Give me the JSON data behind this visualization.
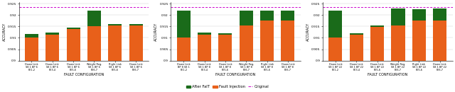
{
  "subplots": [
    {
      "original_line": 0.9235,
      "bars": [
        {
          "label": "Down Link\nS8 1 BP 6\nPE1,2",
          "fault_inj": 0.91,
          "after_fait": 0.0018
        },
        {
          "label": "Down Link\nS8 1 BP 6\nPE3,4",
          "fault_inj": 0.9115,
          "after_fait": 0.0008
        },
        {
          "label": "Down Link\nS8 1 BP 6\nPE5,6",
          "fault_inj": 0.914,
          "after_fait": 0.0005
        },
        {
          "label": "Weight Reg.\nS8 1 BP 6\nPE6,7",
          "fault_inj": 0.915,
          "after_fait": 0.007
        },
        {
          "label": "Right Link\nS8 1 BP 6\nPE5,6",
          "fault_inj": 0.9155,
          "after_fait": 0.0005
        },
        {
          "label": "Down Link\nS8 1 BP 6\nPE6,7",
          "fault_inj": 0.9155,
          "after_fait": 0.0005
        }
      ]
    },
    {
      "original_line": 0.9235,
      "bars": [
        {
          "label": "Down Link\nBP 8 S8 1\nPE1,2",
          "fault_inj": 0.91,
          "after_fait": 0.012
        },
        {
          "label": "Down Link\nS8 1 BP 8\nPE3,4",
          "fault_inj": 0.9115,
          "after_fait": 0.0008
        },
        {
          "label": "Down Link\nS8 1 BP 8\nPE5,6",
          "fault_inj": 0.9115,
          "after_fait": 0.0004
        },
        {
          "label": "Weight Reg.\nS8 1 BP 8\nPE6,7",
          "fault_inj": 0.9155,
          "after_fait": 0.0065
        },
        {
          "label": "Right Link\nS8 1 BP 8\nPE5,6",
          "fault_inj": 0.9175,
          "after_fait": 0.0045
        },
        {
          "label": "Down Link\nS8 1 BP 8\nPE6,7",
          "fault_inj": 0.9175,
          "after_fait": 0.0045
        }
      ]
    },
    {
      "original_line": 0.9235,
      "bars": [
        {
          "label": "Down Link\nS8 1 BP 22\nPE1,2",
          "fault_inj": 0.91,
          "after_fait": 0.012
        },
        {
          "label": "Down Link\nS8 1 BP 22\nPE3,4",
          "fault_inj": 0.9115,
          "after_fait": 0.0005
        },
        {
          "label": "Down Link\nS8 1 BP 22\nPE5,6",
          "fault_inj": 0.9148,
          "after_fait": 0.0005
        },
        {
          "label": "Weight Reg.\nS8 1 BP 22\nPE6,7",
          "fault_inj": 0.9155,
          "after_fait": 0.0075
        },
        {
          "label": "Right Link\nS8 1 BP 22\nPE5,6",
          "fault_inj": 0.9175,
          "after_fait": 0.005
        },
        {
          "label": "Down Link\nS8 1 BP 22\nPE6,7",
          "fault_inj": 0.9175,
          "after_fait": 0.0055
        }
      ]
    }
  ],
  "color_fault_inj": "#E8601A",
  "color_after_fait": "#1A6B1A",
  "color_original": "#CC00CC",
  "ylabel": "ACCURACY",
  "xlabel": "FAULT CONFIGURATION",
  "legend_labels": [
    "After FaIT",
    "Fault Injection",
    "Original"
  ],
  "bar_width": 0.65,
  "ylim_all": [
    0.9,
    0.925
  ],
  "yticks_all": [
    0.9,
    0.905,
    0.91,
    0.915,
    0.92,
    0.925
  ],
  "ytick_labels": [
    "0.9",
    "0.905",
    "0.91",
    "0.915",
    "0.92",
    "0.925"
  ]
}
